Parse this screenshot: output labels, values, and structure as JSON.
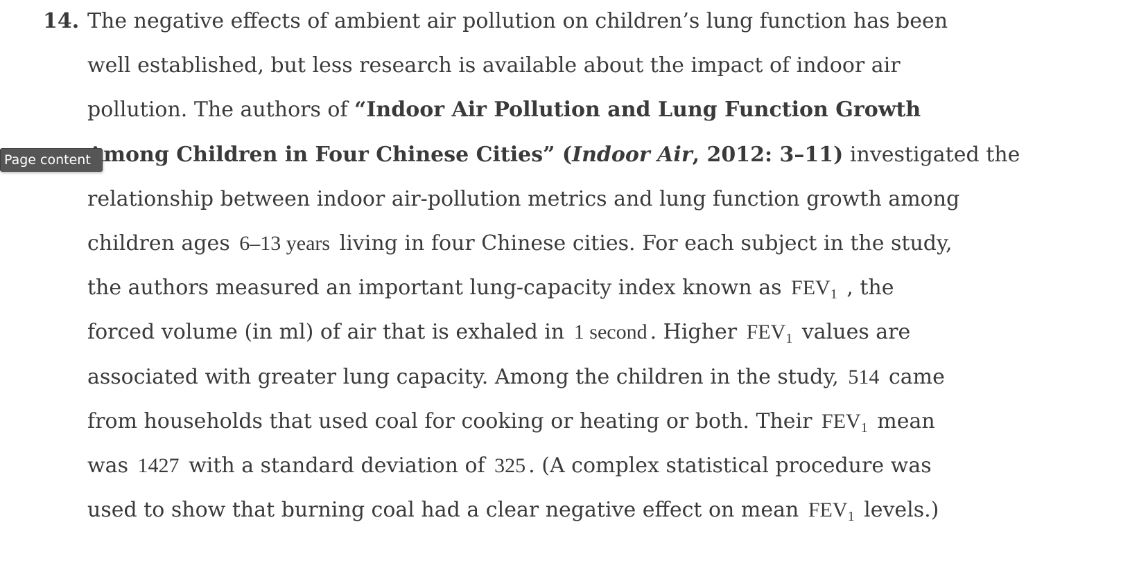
{
  "tooltip": {
    "label": "Page content"
  },
  "problem": {
    "number": "14.",
    "lines": [
      {
        "t1": "The negative effects of ambient air pollution on children’s lung function has been"
      },
      {
        "t1": "well established, but less research is available about the impact of indoor air"
      },
      {
        "t1": "pollution. The authors of ",
        "t2": "“Indoor Air Pollution and Lung Function Growth"
      },
      {
        "t1": "Among Children in Four Chinese Cities” (",
        "t2": "Indoor Air",
        "t3": ", 2012: 3–11)",
        "t4": " investigated the"
      },
      {
        "t1": "relationship between indoor air-pollution metrics and lung function growth among"
      },
      {
        "t1": "children ages",
        "m1": "6–13 years",
        "t2": "living in four Chinese cities. For each subject in the study,"
      },
      {
        "t1": "the authors measured an important lung-capacity index known as",
        "m1": "FEV",
        "s1": "1",
        "t2": ", the"
      },
      {
        "t1": "forced volume (in ml) of air that is exhaled in",
        "m1": "1 second",
        "t2": ". Higher",
        "m2": "FEV",
        "s2": "1",
        "t3": "values are"
      },
      {
        "t1": "associated with greater lung capacity. Among the children in the study,",
        "m1": "514",
        "t2": "came"
      },
      {
        "t1": "from households that used coal for cooking or heating or both. Their",
        "m1": "FEV",
        "s1": "1",
        "t2": "mean"
      },
      {
        "t1": "was",
        "m1": "1427",
        "t2": "with a standard deviation of",
        "m2": "325",
        "t3": ". (A complex statistical procedure was"
      },
      {
        "t1": "used to show that burning coal had a clear negative effect on mean",
        "m1": "FEV",
        "s1": "1",
        "t2": "levels.)"
      }
    ]
  }
}
